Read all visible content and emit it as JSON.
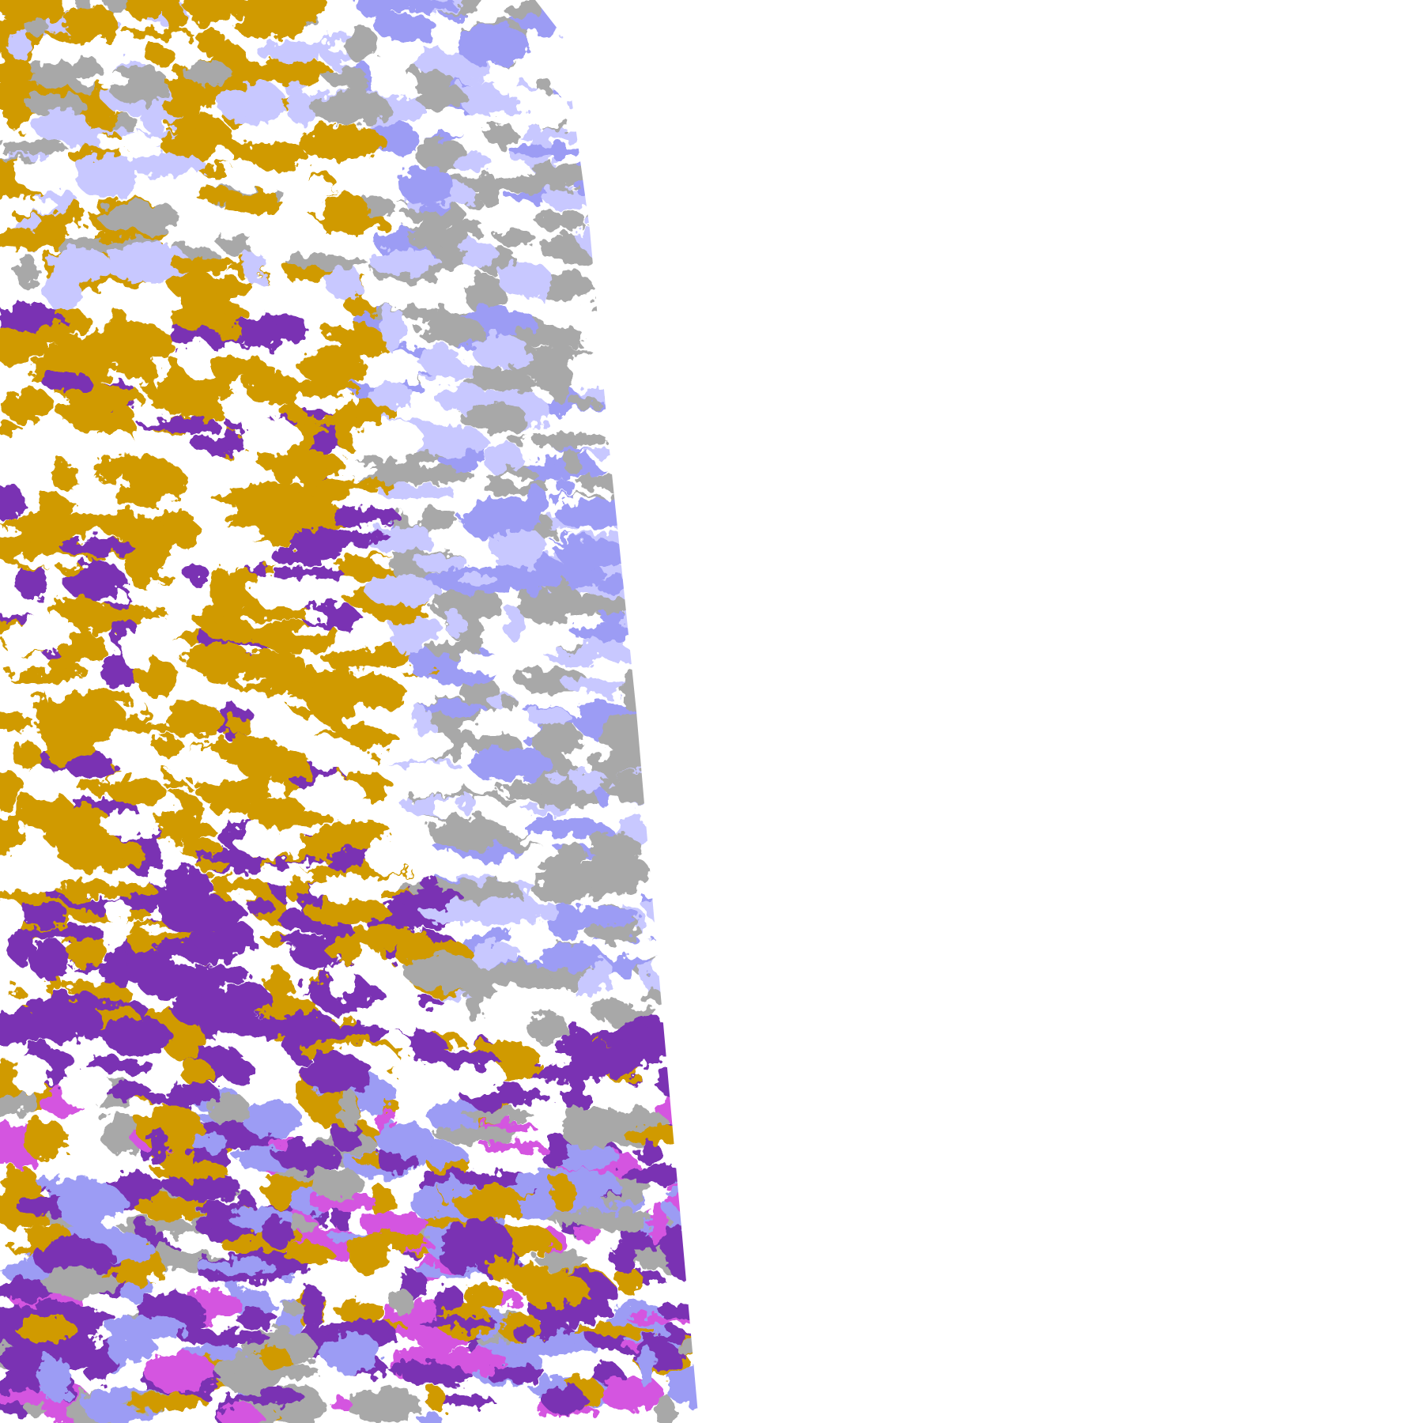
{
  "image": {
    "kind": "satellite cloud-classification swath",
    "palette": {
      "background": "#ffffff",
      "gold": "#d09a00",
      "purple": "#7a33b3",
      "lavender": "#c8c8ff",
      "periwinkle": "#9c9cf4",
      "gray": "#a8a8a8",
      "magenta": "#d455e0",
      "clear": "#ffffff"
    }
  }
}
